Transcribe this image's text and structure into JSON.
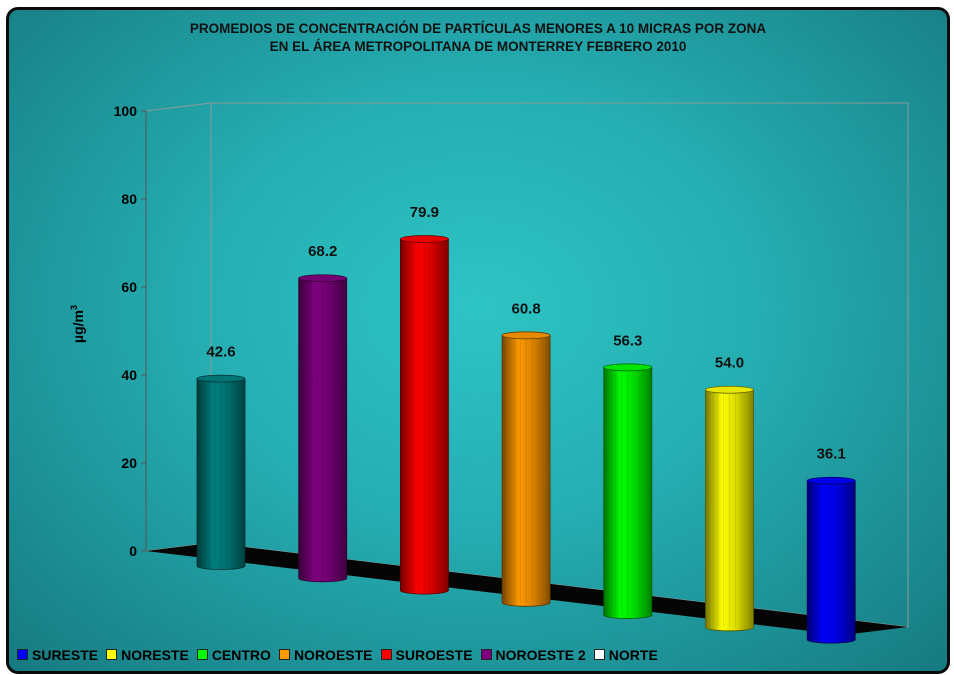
{
  "chart_data": {
    "type": "bar",
    "title_lines": [
      "PROMEDIOS DE CONCENTRACIÓN DE PARTÍCULAS MENORES A 10 MICRAS POR ZONA",
      "EN EL ÁREA METROPOLITANA DE MONTERREY FEBRERO 2010"
    ],
    "ylabel_base": "µg/m",
    "ylabel_sup": "3",
    "ylim": [
      0,
      100
    ],
    "yticks": [
      "0",
      "20",
      "40",
      "60",
      "80",
      "100"
    ],
    "values": [
      42.6,
      68.2,
      79.9,
      60.8,
      56.3,
      54.0,
      36.1
    ],
    "value_labels": [
      "42.6",
      "68.2",
      "79.9",
      "60.8",
      "56.3",
      "54.0",
      "36.1"
    ],
    "bar_colors": [
      "#008080",
      "#800080",
      "#ff0000",
      "#ff9900",
      "#00ff00",
      "#ffff00",
      "#0000ff"
    ],
    "legend": [
      {
        "label": "SURESTE",
        "color": "#0000ff"
      },
      {
        "label": "NORESTE",
        "color": "#ffff00"
      },
      {
        "label": "CENTRO",
        "color": "#00ff00"
      },
      {
        "label": "NOROESTE",
        "color": "#ff9900"
      },
      {
        "label": "SUROESTE",
        "color": "#ff0000"
      },
      {
        "label": "NOROESTE 2",
        "color": "#800080"
      },
      {
        "label": "NORTE",
        "color": "#ffffff"
      }
    ]
  }
}
